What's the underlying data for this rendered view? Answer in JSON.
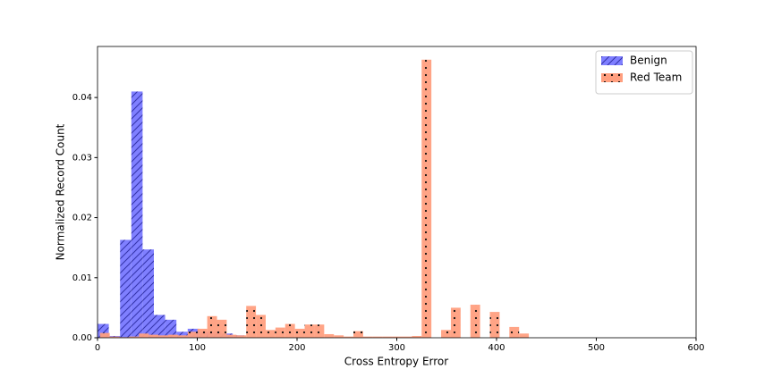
{
  "chart_data": {
    "type": "histogram",
    "x_label": "Cross Entropy Error",
    "y_label": "Normalized Record Count",
    "xlim": [
      0,
      600
    ],
    "xticks": [
      0,
      100,
      200,
      300,
      400,
      500,
      600
    ],
    "ylim": [
      0,
      0.0485
    ],
    "yticks": [
      {
        "value": 0,
        "label": "0.00"
      },
      0.01,
      0.02,
      0.03,
      0.04
    ],
    "legend": "upper right",
    "series": [
      {
        "name": "Benign",
        "color": "#7f7fff",
        "edge": "#3333aa",
        "hatch": "//",
        "bins": [
          0,
          11.3,
          22.6,
          33.9,
          45.2,
          56.5,
          67.8,
          79.1,
          90.4,
          101.7,
          113,
          124.3,
          135.6,
          146.9
        ],
        "values": [
          0.0023,
          0.0003,
          0.0163,
          0.041,
          0.0147,
          0.0038,
          0.003,
          0.001,
          0.0015,
          0.001,
          0.001,
          0.0007,
          0.0004
        ]
      },
      {
        "name": "Red Team",
        "color": "#ff9f7f",
        "edge": "#000000",
        "hatch": "..",
        "bins": [
          2.5,
          12.27,
          22.04,
          31.81,
          41.58,
          51.35,
          61.12,
          70.89,
          80.66,
          90.43,
          100.2,
          109.97,
          119.74,
          129.51,
          139.28,
          149.05,
          158.82,
          168.59,
          178.36,
          188.13,
          197.9,
          207.67,
          217.44,
          227.21,
          236.98,
          246.75,
          256.52,
          266.29,
          276.06,
          285.83,
          295.6,
          305.37,
          315.14,
          324.91,
          334.68,
          344.45,
          354.22,
          363.99,
          373.76,
          383.53,
          393.3,
          403.07,
          412.84,
          422.61,
          432.38
        ],
        "values": [
          0.0008,
          0.0002,
          0.0001,
          0.0002,
          0.0007,
          0.0005,
          0.0004,
          0.0005,
          0.0004,
          0.001,
          0.0015,
          0.0036,
          0.003,
          0.0005,
          0.0004,
          0.0053,
          0.0038,
          0.0013,
          0.0017,
          0.0023,
          0.0015,
          0.0022,
          0.0022,
          0.0006,
          0.0004,
          0.0002,
          0.0011,
          0.0002,
          0.0002,
          0.0002,
          0.0002,
          0.0002,
          0.0003,
          0.0463,
          0,
          0.0013,
          0.005,
          0,
          0.0055,
          0,
          0.0043,
          0,
          0.0018,
          0.0007
        ]
      }
    ]
  }
}
